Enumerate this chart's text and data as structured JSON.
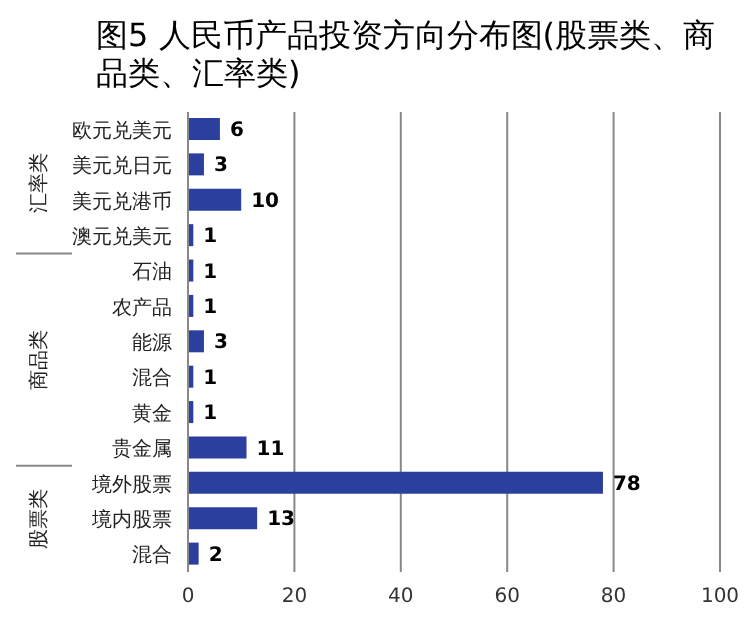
{
  "chart_data": {
    "type": "bar",
    "orientation": "horizontal",
    "title": "图5 人民币产品投资方向分布图(股票类、商品类、汇率类)",
    "categories": [
      "欧元兑美元",
      "美元兑日元",
      "美元兑港币",
      "澳元兑美元",
      "石油",
      "农产品",
      "能源",
      "混合",
      "黄金",
      "贵金属",
      "境外股票",
      "境内股票",
      "混合"
    ],
    "values": [
      6,
      3,
      10,
      1,
      1,
      1,
      3,
      1,
      1,
      11,
      78,
      13,
      2
    ],
    "color": "#2b3f9e",
    "data_labels": true,
    "xlim": [
      0,
      100
    ],
    "xticks": [
      0,
      20,
      40,
      60,
      80,
      100
    ],
    "grid": "x",
    "annotations": [
      "汇率类",
      "商品类",
      "股票类"
    ]
  }
}
